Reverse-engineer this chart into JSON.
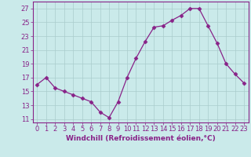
{
  "x": [
    0,
    1,
    2,
    3,
    4,
    5,
    6,
    7,
    8,
    9,
    10,
    11,
    12,
    13,
    14,
    15,
    16,
    17,
    18,
    19,
    20,
    21,
    22,
    23
  ],
  "y": [
    16.0,
    17.0,
    15.5,
    15.0,
    14.5,
    14.0,
    13.5,
    12.0,
    11.2,
    13.5,
    17.0,
    19.8,
    22.2,
    24.3,
    24.5,
    25.3,
    26.0,
    27.0,
    27.0,
    24.5,
    22.0,
    19.0,
    17.5,
    16.2
  ],
  "line_color": "#882288",
  "marker": "D",
  "marker_size": 2.5,
  "bg_color": "#caeaea",
  "grid_color": "#aacccc",
  "xlabel": "Windchill (Refroidissement éolien,°C)",
  "ylabel_ticks": [
    11,
    13,
    15,
    17,
    19,
    21,
    23,
    25,
    27
  ],
  "xtick_labels": [
    "0",
    "1",
    "2",
    "3",
    "4",
    "5",
    "6",
    "7",
    "8",
    "9",
    "10",
    "11",
    "12",
    "13",
    "14",
    "15",
    "16",
    "17",
    "18",
    "19",
    "20",
    "21",
    "22",
    "23"
  ],
  "xlim": [
    -0.5,
    23.5
  ],
  "ylim": [
    10.5,
    28.0
  ],
  "axis_color": "#882288",
  "tick_color": "#882288",
  "label_fontsize": 6.5,
  "tick_fontsize": 6.0
}
